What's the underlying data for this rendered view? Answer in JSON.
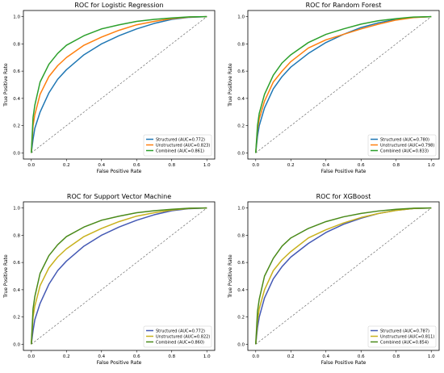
{
  "chart_data": [
    {
      "type": "line",
      "title": "ROC for Logistic Regression",
      "xlabel": "False Positive Rate",
      "ylabel": "True Positive Rate",
      "xlim": [
        0,
        1
      ],
      "ylim": [
        0,
        1
      ],
      "xticks": [
        "0.0",
        "0.2",
        "0.4",
        "0.6",
        "0.8",
        "1.0"
      ],
      "yticks": [
        "0.0",
        "0.2",
        "0.4",
        "0.6",
        "0.8",
        "1.0"
      ],
      "legend_position": "lower-right",
      "diagonal": true,
      "series": [
        {
          "name": "Structured (AUC=0.772)",
          "color": "#1f77b4",
          "x": [
            0,
            0.01,
            0.02,
            0.05,
            0.1,
            0.15,
            0.2,
            0.3,
            0.4,
            0.5,
            0.6,
            0.7,
            0.8,
            0.9,
            1.0
          ],
          "y": [
            0,
            0.1,
            0.18,
            0.3,
            0.44,
            0.54,
            0.61,
            0.72,
            0.8,
            0.86,
            0.91,
            0.95,
            0.98,
            0.995,
            1.0
          ]
        },
        {
          "name": "Unstructured (AUC=0.823)",
          "color": "#ff7f0e",
          "x": [
            0,
            0.01,
            0.02,
            0.05,
            0.1,
            0.15,
            0.2,
            0.3,
            0.4,
            0.5,
            0.6,
            0.7,
            0.8,
            0.9,
            1.0
          ],
          "y": [
            0,
            0.2,
            0.28,
            0.43,
            0.56,
            0.64,
            0.7,
            0.79,
            0.85,
            0.9,
            0.94,
            0.965,
            0.985,
            0.997,
            1.0
          ]
        },
        {
          "name": "Combined (AUC=0.861)",
          "color": "#2ca02c",
          "x": [
            0,
            0.01,
            0.02,
            0.05,
            0.1,
            0.15,
            0.2,
            0.3,
            0.4,
            0.5,
            0.6,
            0.7,
            0.8,
            0.9,
            1.0
          ],
          "y": [
            0,
            0.26,
            0.35,
            0.52,
            0.65,
            0.73,
            0.79,
            0.86,
            0.91,
            0.94,
            0.965,
            0.98,
            0.99,
            0.998,
            1.0
          ]
        }
      ]
    },
    {
      "type": "line",
      "title": "ROC for Random Forest",
      "xlabel": "False Positive Rate",
      "ylabel": "True Positive Rate",
      "xlim": [
        0,
        1
      ],
      "ylim": [
        0,
        1
      ],
      "xticks": [
        "0.0",
        "0.2",
        "0.4",
        "0.6",
        "0.8",
        "1.0"
      ],
      "yticks": [
        "0.0",
        "0.2",
        "0.4",
        "0.6",
        "0.8",
        "1.0"
      ],
      "legend_position": "lower-right",
      "diagonal": true,
      "series": [
        {
          "name": "Structured (AUC=0.780)",
          "color": "#1f77b4",
          "x": [
            0,
            0.01,
            0.02,
            0.05,
            0.1,
            0.15,
            0.2,
            0.3,
            0.4,
            0.5,
            0.6,
            0.7,
            0.8,
            0.9,
            1.0
          ],
          "y": [
            0,
            0.12,
            0.2,
            0.33,
            0.47,
            0.56,
            0.63,
            0.73,
            0.81,
            0.87,
            0.92,
            0.955,
            0.98,
            0.995,
            1.0
          ]
        },
        {
          "name": "Unstructured (AUC=0.798)",
          "color": "#ff7f0e",
          "x": [
            0,
            0.01,
            0.02,
            0.05,
            0.1,
            0.15,
            0.2,
            0.3,
            0.4,
            0.5,
            0.6,
            0.7,
            0.8,
            0.9,
            1.0
          ],
          "y": [
            0,
            0.17,
            0.25,
            0.38,
            0.52,
            0.6,
            0.67,
            0.77,
            0.83,
            0.87,
            0.91,
            0.945,
            0.975,
            0.993,
            1.0
          ]
        },
        {
          "name": "Combined (AUC=0.833)",
          "color": "#2ca02c",
          "x": [
            0,
            0.01,
            0.02,
            0.05,
            0.1,
            0.15,
            0.2,
            0.3,
            0.4,
            0.5,
            0.6,
            0.7,
            0.8,
            0.9,
            1.0
          ],
          "y": [
            0,
            0.2,
            0.29,
            0.43,
            0.57,
            0.66,
            0.72,
            0.81,
            0.87,
            0.91,
            0.945,
            0.97,
            0.985,
            0.997,
            1.0
          ]
        }
      ]
    },
    {
      "type": "line",
      "title": "ROC for Support Vector Machine",
      "xlabel": "False Positive Rate",
      "ylabel": "True Positive Rate",
      "xlim": [
        0,
        1
      ],
      "ylim": [
        0,
        1
      ],
      "xticks": [
        "0.0",
        "0.2",
        "0.4",
        "0.6",
        "0.8",
        "1.0"
      ],
      "yticks": [
        "0.0",
        "0.2",
        "0.4",
        "0.6",
        "0.8",
        "1.0"
      ],
      "legend_position": "lower-right",
      "diagonal": true,
      "series": [
        {
          "name": "Structured (AUC=0.772)",
          "color": "#4459b4",
          "x": [
            0,
            0.01,
            0.02,
            0.05,
            0.1,
            0.15,
            0.2,
            0.3,
            0.4,
            0.5,
            0.6,
            0.7,
            0.8,
            0.9,
            1.0
          ],
          "y": [
            0,
            0.1,
            0.18,
            0.3,
            0.44,
            0.54,
            0.61,
            0.72,
            0.8,
            0.86,
            0.91,
            0.95,
            0.98,
            0.995,
            1.0
          ]
        },
        {
          "name": "Unstructured (AUC=0.822)",
          "color": "#c8b11e",
          "x": [
            0,
            0.01,
            0.02,
            0.05,
            0.1,
            0.15,
            0.2,
            0.3,
            0.4,
            0.5,
            0.6,
            0.7,
            0.8,
            0.9,
            1.0
          ],
          "y": [
            0,
            0.2,
            0.28,
            0.43,
            0.56,
            0.64,
            0.7,
            0.79,
            0.85,
            0.9,
            0.94,
            0.965,
            0.985,
            0.997,
            1.0
          ]
        },
        {
          "name": "Combined (AUC=0.860)",
          "color": "#4a8a1a",
          "x": [
            0,
            0.01,
            0.02,
            0.05,
            0.1,
            0.15,
            0.2,
            0.3,
            0.4,
            0.5,
            0.6,
            0.7,
            0.8,
            0.9,
            1.0
          ],
          "y": [
            0,
            0.26,
            0.35,
            0.52,
            0.65,
            0.73,
            0.79,
            0.86,
            0.91,
            0.94,
            0.965,
            0.98,
            0.99,
            0.998,
            1.0
          ]
        }
      ]
    },
    {
      "type": "line",
      "title": "ROC for XGBoost",
      "xlabel": "False Positive Rate",
      "ylabel": "True Positive Rate",
      "xlim": [
        0,
        1
      ],
      "ylim": [
        0,
        1
      ],
      "xticks": [
        "0.0",
        "0.2",
        "0.4",
        "0.6",
        "0.8",
        "1.0"
      ],
      "yticks": [
        "0.0",
        "0.2",
        "0.4",
        "0.6",
        "0.8",
        "1.0"
      ],
      "legend_position": "lower-right",
      "diagonal": true,
      "series": [
        {
          "name": "Structured (AUC=0.787)",
          "color": "#4459b4",
          "x": [
            0,
            0.01,
            0.02,
            0.05,
            0.1,
            0.15,
            0.2,
            0.3,
            0.4,
            0.5,
            0.6,
            0.7,
            0.8,
            0.9,
            1.0
          ],
          "y": [
            0,
            0.12,
            0.2,
            0.34,
            0.48,
            0.57,
            0.64,
            0.74,
            0.82,
            0.88,
            0.925,
            0.96,
            0.983,
            0.996,
            1.0
          ]
        },
        {
          "name": "Unstructured (AUC=0.811)",
          "color": "#c8b11e",
          "x": [
            0,
            0.01,
            0.02,
            0.05,
            0.1,
            0.15,
            0.2,
            0.3,
            0.4,
            0.5,
            0.6,
            0.7,
            0.8,
            0.9,
            1.0
          ],
          "y": [
            0,
            0.17,
            0.26,
            0.4,
            0.54,
            0.62,
            0.68,
            0.78,
            0.84,
            0.89,
            0.93,
            0.96,
            0.982,
            0.996,
            1.0
          ]
        },
        {
          "name": "Combined (AUC=0.854)",
          "color": "#4a8a1a",
          "x": [
            0,
            0.01,
            0.02,
            0.05,
            0.1,
            0.15,
            0.2,
            0.3,
            0.4,
            0.5,
            0.6,
            0.7,
            0.8,
            0.9,
            1.0
          ],
          "y": [
            0,
            0.24,
            0.33,
            0.5,
            0.63,
            0.72,
            0.78,
            0.85,
            0.9,
            0.935,
            0.96,
            0.978,
            0.99,
            0.998,
            1.0
          ]
        }
      ]
    }
  ]
}
